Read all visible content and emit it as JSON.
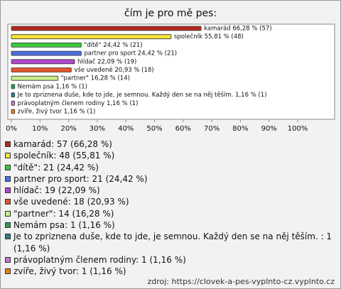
{
  "chart_data": {
    "type": "bar",
    "orientation": "horizontal",
    "title": "čím je pro mě pes:",
    "categories": [
      "kamarád",
      "společník",
      "\"dítě\"",
      "partner pro sport",
      "hlídač",
      "vše uvedené",
      "\"partner\"",
      "Nemám psa",
      "Je to zpriznena duše, kde to jde, je semnou. Každý den se na něj těším.",
      "právoplatným členem rodiny",
      "zvíře, živý tvor"
    ],
    "values": [
      66.28,
      55.81,
      24.42,
      24.42,
      22.09,
      20.93,
      16.28,
      1.16,
      1.16,
      1.16,
      1.16
    ],
    "value_labels": [
      "kamarád 66,28 % (57)",
      "společník 55,81 % (48)",
      "\"dítě\" 24,42 % (21)",
      "partner pro sport 24,42 % (21)",
      "hlídač 22,09 % (19)",
      "vše uvedené 20,93 % (18)",
      "\"partner\" 16,28 % (14)",
      "Nemám psa 1,16 % (1)",
      "Je to zpriznena duše, kde to jde, je semnou. Každý den se na něj těším.  1,16 % (1)",
      "právoplatným členem rodiny 1,16 % (1)",
      "zvíře, živý tvor 1,16 % (1)"
    ],
    "colors": [
      "#b22a1e",
      "#f2e33c",
      "#3cc83c",
      "#4f6fe0",
      "#b446d2",
      "#e4562c",
      "#c8ef8a",
      "#2f9a5a",
      "#2e7d8c",
      "#c07ac8",
      "#e8801e"
    ],
    "legend": [
      "kamarád: 57 (66,28 %)",
      "společník: 48 (55,81 %)",
      "\"dítě\": 21 (24,42 %)",
      "partner pro sport: 21 (24,42 %)",
      "hlídač: 19 (22,09 %)",
      "vše uvedené: 18 (20,93 %)",
      "\"partner\": 14 (16,28 %)",
      "Nemám psa: 1 (1,16 %)",
      "Je to zpriznena duše, kde to jde, je semnou. Každý den se na něj těším. : 1 (1,16 %)",
      "právoplatným členem rodiny: 1 (1,16 %)",
      "zvíře, živý tvor: 1 (1,16 %)"
    ],
    "xlim": [
      0,
      100
    ],
    "xticks": [
      {
        "value": 0,
        "label": "0%"
      },
      {
        "value": 10,
        "label": "10%"
      },
      {
        "value": 20,
        "label": "20%"
      },
      {
        "value": 30,
        "label": "30%"
      },
      {
        "value": 40,
        "label": "40%"
      },
      {
        "value": 50,
        "label": "50%"
      },
      {
        "value": 60,
        "label": "60%"
      },
      {
        "value": 70,
        "label": "70%"
      },
      {
        "value": 80,
        "label": "80%"
      },
      {
        "value": 90,
        "label": "90%"
      },
      {
        "value": 100,
        "label": "100%"
      }
    ],
    "source": "zdroj: https://clovek-a-pes-vyplnto-cz.vyplnto.cz"
  }
}
